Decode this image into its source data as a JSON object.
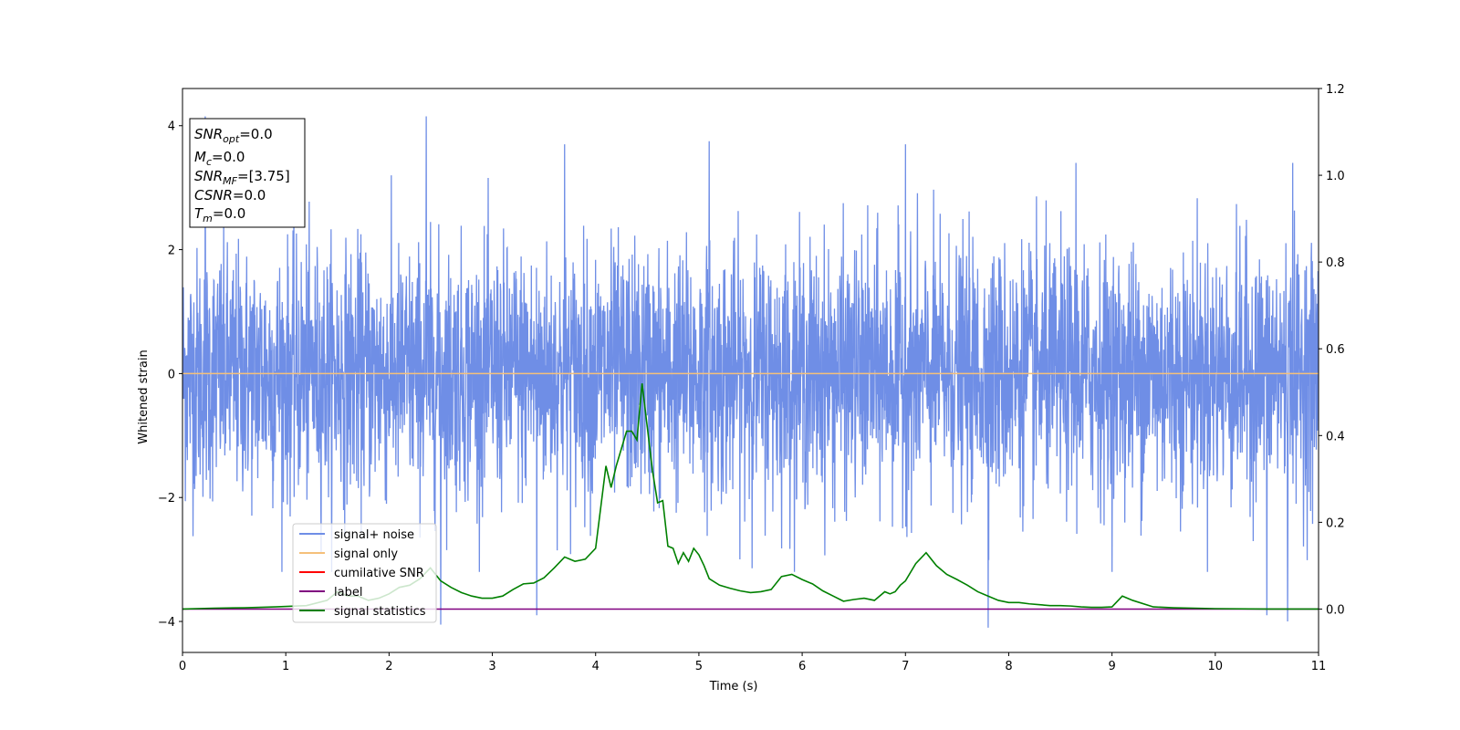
{
  "chart_data": {
    "type": "line",
    "xlabel": "Time (s)",
    "ylabel": "Whitened strain",
    "xlim": [
      0,
      11
    ],
    "ylim_left": [
      -4.5,
      4.6
    ],
    "ylim_right": [
      -0.1,
      1.2
    ],
    "x_ticks": [
      0,
      1,
      2,
      3,
      4,
      5,
      6,
      7,
      8,
      9,
      10,
      11
    ],
    "y_ticks_left": [
      -4,
      -2,
      0,
      2,
      4
    ],
    "y_tick_labels_left": [
      "−4",
      "−2",
      "0",
      "2",
      "4"
    ],
    "y_ticks_right": [
      0.0,
      0.2,
      0.4,
      0.6,
      0.8,
      1.0,
      1.2
    ],
    "y_tick_labels_right": [
      "0.0",
      "0.2",
      "0.4",
      "0.6",
      "0.8",
      "1.0",
      "1.2"
    ],
    "info_box": {
      "snr_opt": {
        "base": "SNR",
        "sub": "opt",
        "value": "=0.0"
      },
      "mc": {
        "base": "M",
        "sub": "c",
        "value": "=0.0"
      },
      "snr_mf": {
        "base": "SNR",
        "sub": "MF",
        "value": "=[3.75]"
      },
      "csnr": {
        "base": "CSNR",
        "value": "=0.0"
      },
      "tm": {
        "base": "T",
        "sub": "m",
        "value": "=0.0"
      }
    },
    "legend": {
      "placement": "lower-left",
      "entries": [
        {
          "label": "signal+ noise",
          "color": "#6f8ee6"
        },
        {
          "label": "signal only",
          "color": "#f5c07a"
        },
        {
          "label": "cumilative SNR",
          "color": "#ff0000"
        },
        {
          "label": "label",
          "color": "#800080"
        },
        {
          "label": "signal statistics",
          "color": "#008000"
        }
      ]
    },
    "series": [
      {
        "name": "signal+ noise",
        "axis": "left",
        "color": "#6f8ee6",
        "note_samples": "dense noise, approx gaussian with std ~1.0",
        "spikes_max": [
          [
            0.22,
            4.15
          ],
          [
            2.36,
            4.15
          ],
          [
            3.7,
            3.7
          ],
          [
            5.1,
            3.75
          ],
          [
            7.0,
            3.7
          ],
          [
            8.65,
            3.4
          ],
          [
            10.75,
            3.4
          ]
        ],
        "spikes_min": [
          [
            2.5,
            -4.05
          ],
          [
            3.43,
            -3.9
          ],
          [
            7.8,
            -4.1
          ],
          [
            10.5,
            -3.9
          ],
          [
            10.7,
            -4.0
          ]
        ]
      },
      {
        "name": "signal only",
        "axis": "left",
        "color": "#f5c07a",
        "x": [
          0,
          11
        ],
        "y": [
          0,
          0
        ]
      },
      {
        "name": "label",
        "axis": "right",
        "color": "#800080",
        "x": [
          0,
          11
        ],
        "y": [
          0,
          0
        ]
      },
      {
        "name": "signal statistics",
        "axis": "right",
        "color": "#008000",
        "x": [
          0,
          0.3,
          0.6,
          0.9,
          1.2,
          1.4,
          1.5,
          1.6,
          1.7,
          1.8,
          1.9,
          2.0,
          2.1,
          2.2,
          2.3,
          2.4,
          2.5,
          2.6,
          2.7,
          2.8,
          2.9,
          3.0,
          3.1,
          3.2,
          3.3,
          3.4,
          3.5,
          3.6,
          3.7,
          3.8,
          3.9,
          4.0,
          4.1,
          4.15,
          4.2,
          4.3,
          4.35,
          4.4,
          4.45,
          4.5,
          4.55,
          4.6,
          4.65,
          4.7,
          4.75,
          4.8,
          4.85,
          4.9,
          4.95,
          5.0,
          5.05,
          5.1,
          5.2,
          5.3,
          5.4,
          5.5,
          5.6,
          5.7,
          5.8,
          5.9,
          6.0,
          6.1,
          6.2,
          6.3,
          6.4,
          6.5,
          6.6,
          6.7,
          6.8,
          6.85,
          6.9,
          6.95,
          7.0,
          7.1,
          7.2,
          7.3,
          7.4,
          7.5,
          7.6,
          7.7,
          7.8,
          7.9,
          8.0,
          8.1,
          8.2,
          8.3,
          8.4,
          8.5,
          8.6,
          8.7,
          8.8,
          8.9,
          9.0,
          9.1,
          9.2,
          9.4,
          9.6,
          9.8,
          10.0,
          10.5,
          11.0
        ],
        "y": [
          0.0,
          0.002,
          0.003,
          0.005,
          0.008,
          0.02,
          0.04,
          0.03,
          0.03,
          0.02,
          0.025,
          0.035,
          0.05,
          0.055,
          0.07,
          0.095,
          0.065,
          0.05,
          0.038,
          0.03,
          0.025,
          0.025,
          0.03,
          0.045,
          0.058,
          0.06,
          0.072,
          0.095,
          0.12,
          0.11,
          0.115,
          0.14,
          0.33,
          0.28,
          0.33,
          0.41,
          0.41,
          0.39,
          0.52,
          0.42,
          0.32,
          0.245,
          0.25,
          0.145,
          0.14,
          0.105,
          0.13,
          0.11,
          0.14,
          0.125,
          0.1,
          0.07,
          0.055,
          0.048,
          0.042,
          0.038,
          0.04,
          0.045,
          0.075,
          0.08,
          0.068,
          0.058,
          0.042,
          0.03,
          0.018,
          0.022,
          0.025,
          0.02,
          0.04,
          0.035,
          0.04,
          0.055,
          0.065,
          0.105,
          0.13,
          0.1,
          0.08,
          0.068,
          0.055,
          0.04,
          0.03,
          0.02,
          0.015,
          0.015,
          0.012,
          0.01,
          0.008,
          0.008,
          0.007,
          0.005,
          0.004,
          0.004,
          0.005,
          0.03,
          0.02,
          0.005,
          0.003,
          0.002,
          0.001,
          0.0,
          0.0
        ]
      }
    ]
  }
}
